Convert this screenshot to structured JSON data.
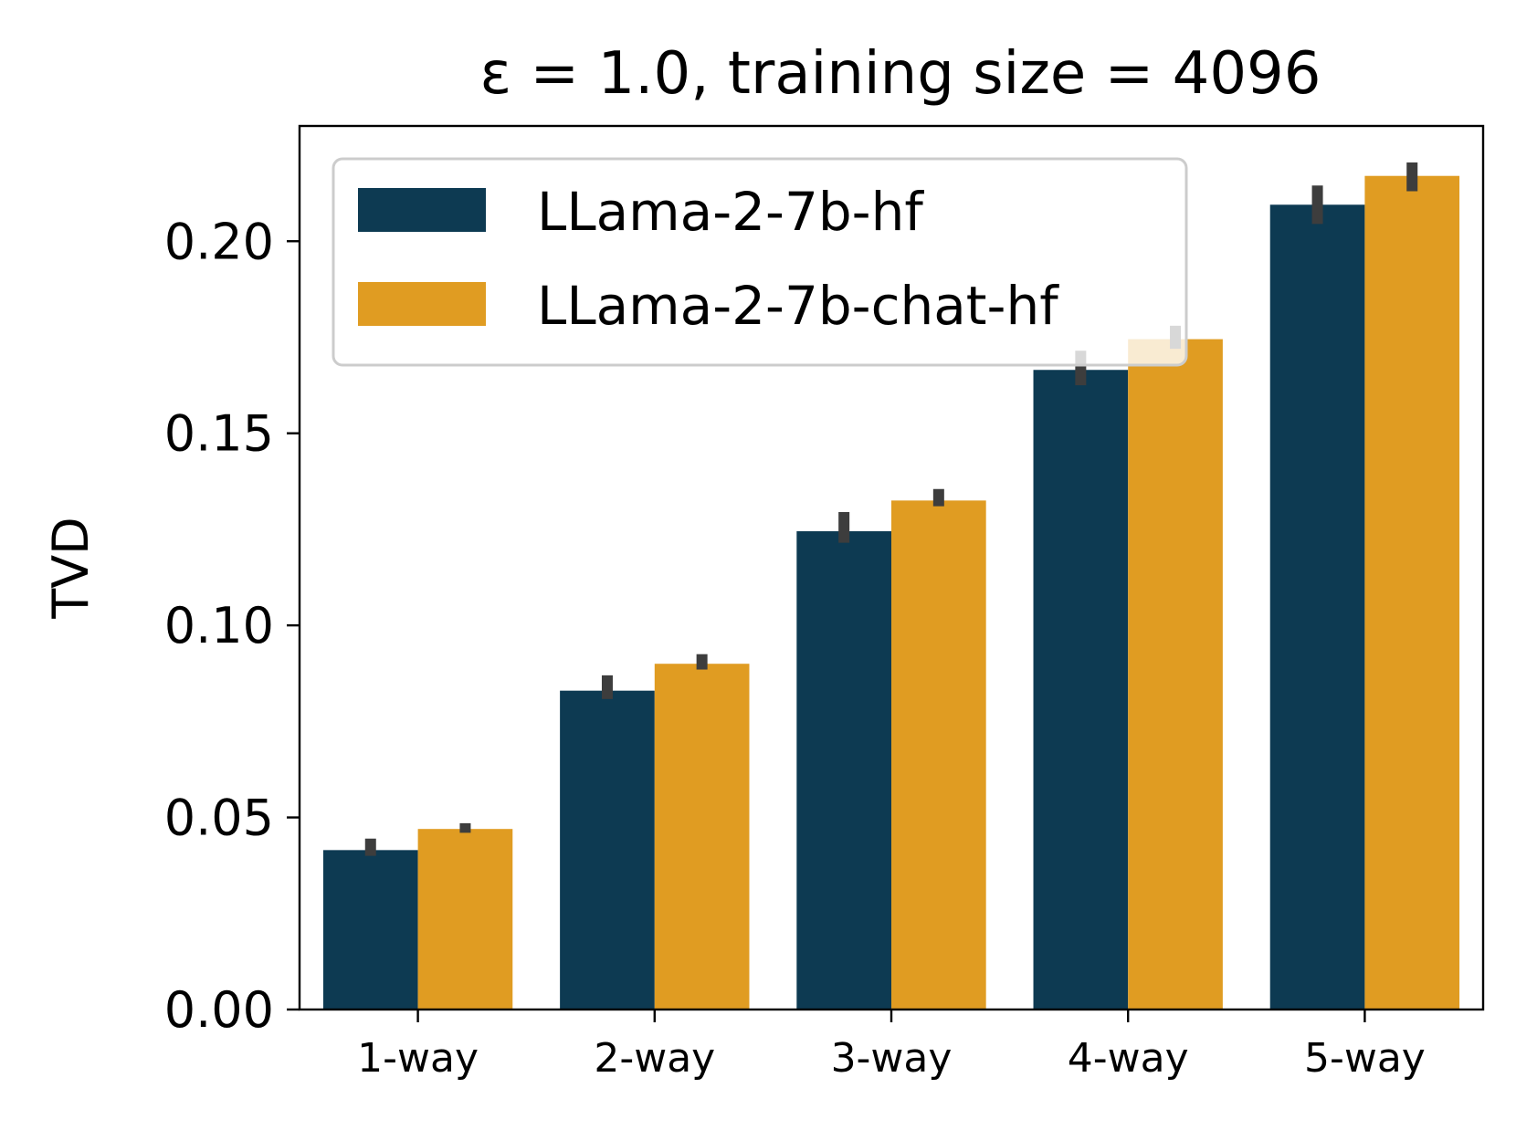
{
  "chart_data": {
    "type": "bar",
    "title": "ε = 1.0, training size = 4096",
    "xlabel": "",
    "ylabel": "TVD",
    "categories": [
      "1-way",
      "2-way",
      "3-way",
      "4-way",
      "5-way"
    ],
    "ylim": [
      0,
      0.23
    ],
    "yticks": [
      0.0,
      0.05,
      0.1,
      0.15,
      0.2
    ],
    "ytick_labels": [
      "0.00",
      "0.05",
      "0.10",
      "0.15",
      "0.20"
    ],
    "grid": false,
    "legend_position": "top-left",
    "series": [
      {
        "name": "LLama-2-7b-hf",
        "color": "#0d3a52",
        "values": [
          0.0415,
          0.083,
          0.1245,
          0.1665,
          0.2095
        ],
        "error_low": [
          0.04,
          0.0808,
          0.1215,
          0.1625,
          0.2045
        ],
        "error_high": [
          0.0445,
          0.087,
          0.1295,
          0.1715,
          0.2145
        ]
      },
      {
        "name": "LLama-2-7b-chat-hf",
        "color": "#e09c22",
        "values": [
          0.047,
          0.09,
          0.1325,
          0.1745,
          0.217
        ],
        "error_low": [
          0.046,
          0.0885,
          0.131,
          0.172,
          0.213
        ],
        "error_high": [
          0.0485,
          0.0925,
          0.1355,
          0.178,
          0.2205
        ]
      }
    ],
    "errorbar_color": "#3d3d3d"
  }
}
